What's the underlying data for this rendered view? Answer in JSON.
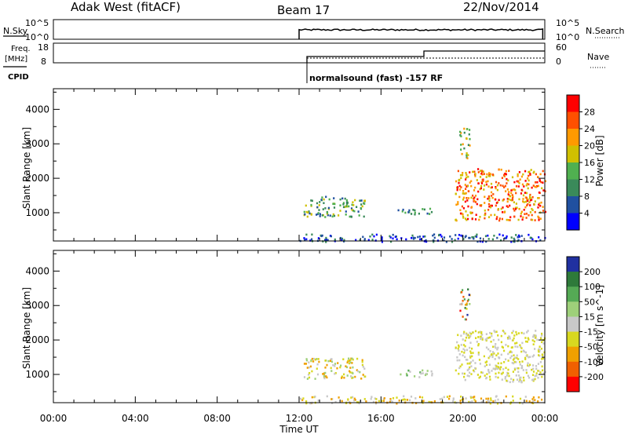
{
  "header": {
    "site": "Adak West (fitACF)",
    "beam": "Beam 17",
    "date": "22/Nov/2014"
  },
  "top_panels": {
    "nsky_label": "N.Sky",
    "nsky_ticks": [
      "10^5",
      "10^0"
    ],
    "nsearch_label": "N.Search",
    "nsearch_ticks": [
      "10^5",
      "10^0"
    ],
    "freq_label": "Freq.",
    "freq_unit": "[MHz]",
    "freq_ticks": [
      "18",
      "8"
    ],
    "nave_label": "Nave",
    "nave_ticks": [
      "60",
      "0"
    ],
    "cpid_label": "CPID",
    "cpid_text": "normalsound (fast) -157 RF"
  },
  "colors": {
    "power_scale": [
      "#0000ff",
      "#2050a0",
      "#3a8a5a",
      "#50b050",
      "#d0c000",
      "#ff9a00",
      "#ff5000",
      "#ff0000"
    ],
    "velocity_scale": [
      "#2030a0",
      "#2e7a3a",
      "#55aa55",
      "#9ed07a",
      "#c8c8c8",
      "#d8d820",
      "#f0a000",
      "#f06000",
      "#ff0000"
    ]
  },
  "chart_data": [
    {
      "type": "heatmap",
      "panel": "power",
      "ylabel": "Slant Range [km]",
      "yticks": [
        "1000",
        "2000",
        "3000",
        "4000"
      ],
      "ylim": [
        180,
        4600
      ],
      "xlim": [
        0,
        24
      ],
      "grid": false,
      "colorbar": {
        "label": "Power [dB]",
        "ticks": [
          "4",
          "8",
          "12",
          "16",
          "20",
          "24",
          "28"
        ],
        "range": [
          0,
          32
        ]
      },
      "data_start_hour": 12,
      "echo_regions": [
        {
          "t": [
            12.2,
            15.2
          ],
          "r": [
            900,
            1500
          ],
          "level": "12-20 dB"
        },
        {
          "t": [
            16.8,
            18.5
          ],
          "r": [
            950,
            1150
          ],
          "level": "8-16 dB"
        },
        {
          "t": [
            19.6,
            24.0
          ],
          "r": [
            800,
            2300
          ],
          "level": "20-32 dB"
        },
        {
          "t": [
            19.8,
            20.3
          ],
          "r": [
            2600,
            3500
          ],
          "level": "12-24 dB"
        },
        {
          "t": [
            12.0,
            24.0
          ],
          "r": [
            180,
            400
          ],
          "level": "4-12 dB"
        }
      ]
    },
    {
      "type": "heatmap",
      "panel": "velocity",
      "ylabel": "Slant Range [km]",
      "yticks": [
        "1000",
        "2000",
        "3000",
        "4000"
      ],
      "ylim": [
        180,
        4600
      ],
      "xlim": [
        0,
        24
      ],
      "grid": false,
      "colorbar": {
        "label": "Velocity [m s^-1]",
        "ticks": [
          "200",
          "100",
          "50",
          "15",
          "-15",
          "-50",
          "-100",
          "-200"
        ],
        "range": [
          -300,
          300
        ]
      },
      "xlabel": "Time UT",
      "xticks": [
        "00:00",
        "04:00",
        "08:00",
        "12:00",
        "16:00",
        "20:00",
        "00:00"
      ],
      "echo_regions": [
        {
          "t": [
            12.2,
            15.2
          ],
          "r": [
            900,
            1500
          ],
          "level": "-50 to 15 m/s"
        },
        {
          "t": [
            16.8,
            18.5
          ],
          "r": [
            950,
            1150
          ],
          "level": "15 to 50 m/s"
        },
        {
          "t": [
            19.6,
            24.0
          ],
          "r": [
            800,
            2300
          ],
          "level": "-15 to 15 m/s"
        },
        {
          "t": [
            19.8,
            20.3
          ],
          "r": [
            2600,
            3500
          ],
          "level": "-200 to 200 m/s"
        },
        {
          "t": [
            12.0,
            24.0
          ],
          "r": [
            180,
            400
          ],
          "level": "-50 to 15 m/s"
        }
      ]
    }
  ]
}
